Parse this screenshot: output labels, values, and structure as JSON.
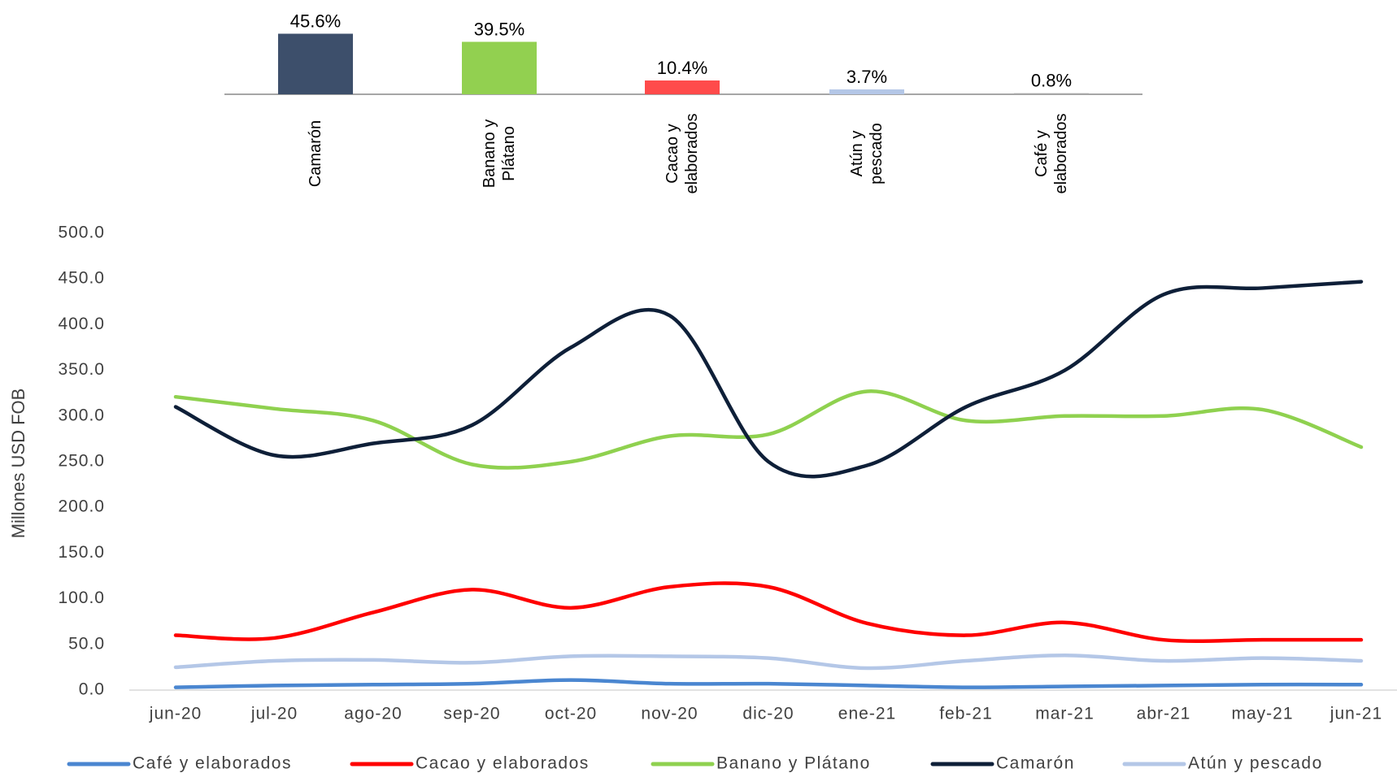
{
  "chart_data": [
    {
      "type": "bar",
      "categories": [
        "Camarón",
        "Banano y Plátano",
        "Cacao y elaborados",
        "Atún y pescado",
        "Café y elaborados"
      ],
      "values": [
        45.6,
        39.5,
        10.4,
        3.7,
        0.8
      ],
      "value_labels": [
        "45.6%",
        "39.5%",
        "10.4%",
        "3.7%",
        "0.8%"
      ],
      "colors": [
        "#3d4f6b",
        "#92d050",
        "#ff4b4b",
        "#b4c7e7",
        "#a6a6a6"
      ]
    },
    {
      "type": "line",
      "y_label": "Millones USD FOB",
      "categories": [
        "jun-20",
        "jul-20",
        "ago-20",
        "sep-20",
        "oct-20",
        "nov-20",
        "dic-20",
        "ene-21",
        "feb-21",
        "mar-21",
        "abr-21",
        "may-21",
        "jun-21"
      ],
      "ylim": [
        0,
        500
      ],
      "yticks": [
        {
          "value": 0,
          "label": "0.0"
        },
        {
          "value": 50,
          "label": "50.0"
        },
        {
          "value": 100,
          "label": "100.0"
        },
        {
          "value": 150,
          "label": "150.0"
        },
        {
          "value": 200,
          "label": "200.0"
        },
        {
          "value": 250,
          "label": "250.0"
        },
        {
          "value": 300,
          "label": "300.0"
        },
        {
          "value": 350,
          "label": "350.0"
        },
        {
          "value": 400,
          "label": "400.0"
        },
        {
          "value": 450,
          "label": "450.0"
        },
        {
          "value": 500,
          "label": "500.0"
        }
      ],
      "series": [
        {
          "name": "Café y elaborados",
          "color": "#4a86d0",
          "values": [
            3,
            5,
            6,
            7,
            11,
            7,
            7,
            5,
            3,
            4,
            5,
            6,
            6
          ]
        },
        {
          "name": "Cacao y elaborados",
          "color": "#ff0000",
          "values": [
            60,
            57,
            85,
            110,
            90,
            113,
            113,
            73,
            60,
            74,
            55,
            55,
            55
          ]
        },
        {
          "name": "Banano y Plátano",
          "color": "#8fd14f",
          "values": [
            321,
            308,
            295,
            247,
            250,
            278,
            280,
            327,
            295,
            300,
            300,
            307,
            266
          ]
        },
        {
          "name": "Camarón",
          "color": "#0e1f38",
          "values": [
            310,
            257,
            270,
            290,
            375,
            410,
            250,
            246,
            310,
            350,
            433,
            440,
            447
          ]
        },
        {
          "name": "Atún y pescado",
          "color": "#b4c7e7",
          "values": [
            25,
            32,
            33,
            30,
            37,
            37,
            35,
            24,
            32,
            38,
            32,
            35,
            32
          ]
        }
      ]
    }
  ]
}
